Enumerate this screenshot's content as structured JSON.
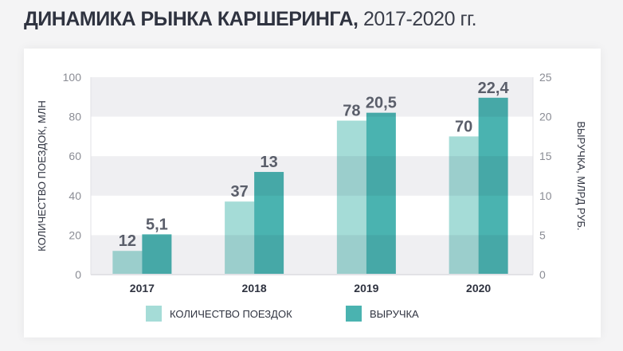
{
  "title": {
    "bold": "ДИНАМИКА РЫНКА КАРШЕРИНГА,",
    "light": "2017-2020 гг."
  },
  "chart_data": {
    "type": "bar",
    "categories": [
      "2017",
      "2018",
      "2019",
      "2020"
    ],
    "series": [
      {
        "name": "КОЛИЧЕСТВО ПОЕЗДОК",
        "axis": "left",
        "values": [
          12,
          37,
          78,
          70
        ],
        "labels": [
          "12",
          "37",
          "78",
          "70"
        ],
        "color": "#a5dcd7"
      },
      {
        "name": "ВЫРУЧКА",
        "axis": "right",
        "values": [
          5.1,
          13,
          20.5,
          22.4
        ],
        "labels": [
          "5,1",
          "13",
          "20,5",
          "22,4"
        ],
        "color": "#4ab3b0"
      }
    ],
    "ylabel": "КОЛИЧЕСТВО ПОЕЗДОК, МЛН",
    "ylabel_right": "ВЫРУЧКА, МЛРД РУБ.",
    "ylim": [
      0,
      100
    ],
    "ylim_right": [
      0,
      25
    ],
    "yticks": [
      "0",
      "20",
      "40",
      "60",
      "80",
      "100"
    ],
    "yticks_right": [
      "0",
      "5",
      "10",
      "15",
      "20",
      "25"
    ],
    "grid": "alternating horizontal bands",
    "band_color": "#efeff2",
    "legend_placement": "bottom"
  }
}
